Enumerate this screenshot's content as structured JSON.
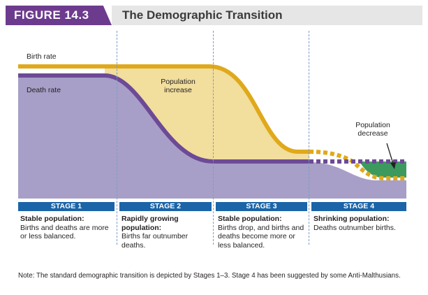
{
  "header": {
    "figure_label": "FIGURE 14.3",
    "title": "The Demographic Transition"
  },
  "colors": {
    "accent_purple": "#6d3b8e",
    "birth_line": "#e0a91b",
    "death_line": "#6d4a96",
    "death_area": "#a79fc7",
    "increase_area": "#f2de9d",
    "decrease_area": "#3c9a5f",
    "stage_bar": "#1b64a8"
  },
  "diagram": {
    "birth_rate_label": "Birth rate",
    "death_rate_label": "Death rate",
    "population_increase_label": "Population increase",
    "population_decrease_label": "Population decrease"
  },
  "stages": [
    {
      "label": "STAGE 1",
      "title": "Stable population:",
      "body": "Births and deaths are more or less balanced."
    },
    {
      "label": "STAGE 2",
      "title": "Rapidly growing population:",
      "body": "Births far outnumber deaths."
    },
    {
      "label": "STAGE 3",
      "title": "Stable population:",
      "body": "Births drop, and births and deaths become more or less balanced."
    },
    {
      "label": "STAGE 4",
      "title": "Shrinking population:",
      "body": "Deaths outnumber births."
    }
  ],
  "note": "Note: The standard demographic transition is depicted by Stages 1–3. Stage 4 has been suggested by some Anti-Malthusians."
}
